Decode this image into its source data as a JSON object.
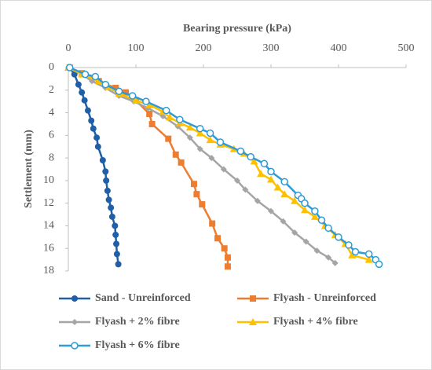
{
  "chart_data": {
    "type": "line",
    "x_label": "Bearing pressure (kPa)",
    "y_label": "Settlement (mm)",
    "xlim": [
      0,
      500
    ],
    "xticks": [
      0,
      100,
      200,
      300,
      400,
      500
    ],
    "ylim": [
      0,
      18
    ],
    "yticks": [
      0,
      2,
      4,
      6,
      8,
      10,
      12,
      14,
      16,
      18
    ],
    "y_inverted": true,
    "x_axis_top": true,
    "grid": false,
    "legend": "bottom",
    "series": [
      {
        "name": "Sand - Unreinforced",
        "color": "#1f5fa8",
        "marker": "circle",
        "x": [
          2,
          9,
          15,
          20,
          24,
          29,
          34,
          37,
          42,
          44,
          51,
          55,
          56,
          58,
          60,
          63,
          65,
          69,
          70,
          71,
          72,
          74
        ],
        "values": [
          0,
          0.6,
          1.5,
          2.2,
          2.9,
          3.8,
          4.7,
          5.4,
          6.2,
          7.0,
          8.2,
          9.2,
          10.0,
          10.9,
          11.7,
          12.4,
          13.2,
          14.0,
          14.8,
          15.6,
          16.5,
          17.4
        ]
      },
      {
        "name": "Flyash - Unreinforced",
        "color": "#ed7d31",
        "marker": "square",
        "x": [
          2,
          20,
          45,
          70,
          85,
          100,
          120,
          124,
          148,
          159,
          167,
          186,
          190,
          198,
          213,
          221,
          231,
          236,
          236
        ],
        "values": [
          0,
          0.5,
          1.2,
          1.8,
          2.2,
          2.9,
          4.1,
          5.0,
          6.3,
          7.7,
          8.4,
          10.3,
          11.2,
          12.1,
          13.8,
          15.1,
          16.0,
          16.8,
          17.6
        ]
      },
      {
        "name": "Flyash + 2% fibre",
        "color": "#a5a5a5",
        "marker": "diamond",
        "x": [
          0,
          20,
          35,
          55,
          75,
          97,
          118,
          140,
          162,
          180,
          195,
          212,
          230,
          250,
          262,
          280,
          300,
          318,
          335,
          352,
          368,
          385,
          395
        ],
        "values": [
          0,
          0.6,
          1.2,
          1.8,
          2.5,
          3.0,
          3.6,
          4.3,
          5.2,
          6.2,
          7.2,
          8.0,
          9.0,
          10.0,
          10.8,
          11.8,
          12.7,
          13.6,
          14.6,
          15.4,
          16.2,
          16.8,
          17.3
        ]
      },
      {
        "name": "Flyash + 4% fibre",
        "color": "#ffc000",
        "marker": "triangle",
        "x": [
          0,
          20,
          45,
          60,
          75,
          100,
          120,
          140,
          150,
          165,
          180,
          195,
          210,
          225,
          245,
          260,
          275,
          285,
          300,
          310,
          320,
          335,
          350,
          365,
          380,
          395,
          410,
          420,
          445
        ],
        "values": [
          0,
          0.6,
          1.2,
          1.7,
          2.3,
          2.9,
          3.3,
          3.9,
          4.4,
          4.9,
          5.3,
          5.8,
          6.4,
          6.8,
          7.2,
          7.6,
          8.3,
          9.4,
          9.9,
          10.6,
          11.2,
          11.8,
          12.6,
          13.2,
          14.0,
          14.8,
          15.6,
          16.6,
          17.0
        ]
      },
      {
        "name": "Flyash + 6% fibre",
        "color": "#2e9bd6",
        "marker": "open-circle",
        "x": [
          2,
          25,
          40,
          55,
          75,
          95,
          115,
          145,
          165,
          195,
          210,
          225,
          255,
          270,
          290,
          300,
          320,
          340,
          345,
          350,
          365,
          375,
          385,
          400,
          415,
          425,
          445,
          455,
          460
        ],
        "values": [
          0,
          0.6,
          0.8,
          1.5,
          2.1,
          2.5,
          3.0,
          3.8,
          4.6,
          5.4,
          5.8,
          6.6,
          7.4,
          7.9,
          8.5,
          9.2,
          10.1,
          11.3,
          11.6,
          12.0,
          12.7,
          13.5,
          14.2,
          15.0,
          15.7,
          16.3,
          16.5,
          17.0,
          17.4
        ]
      }
    ]
  }
}
